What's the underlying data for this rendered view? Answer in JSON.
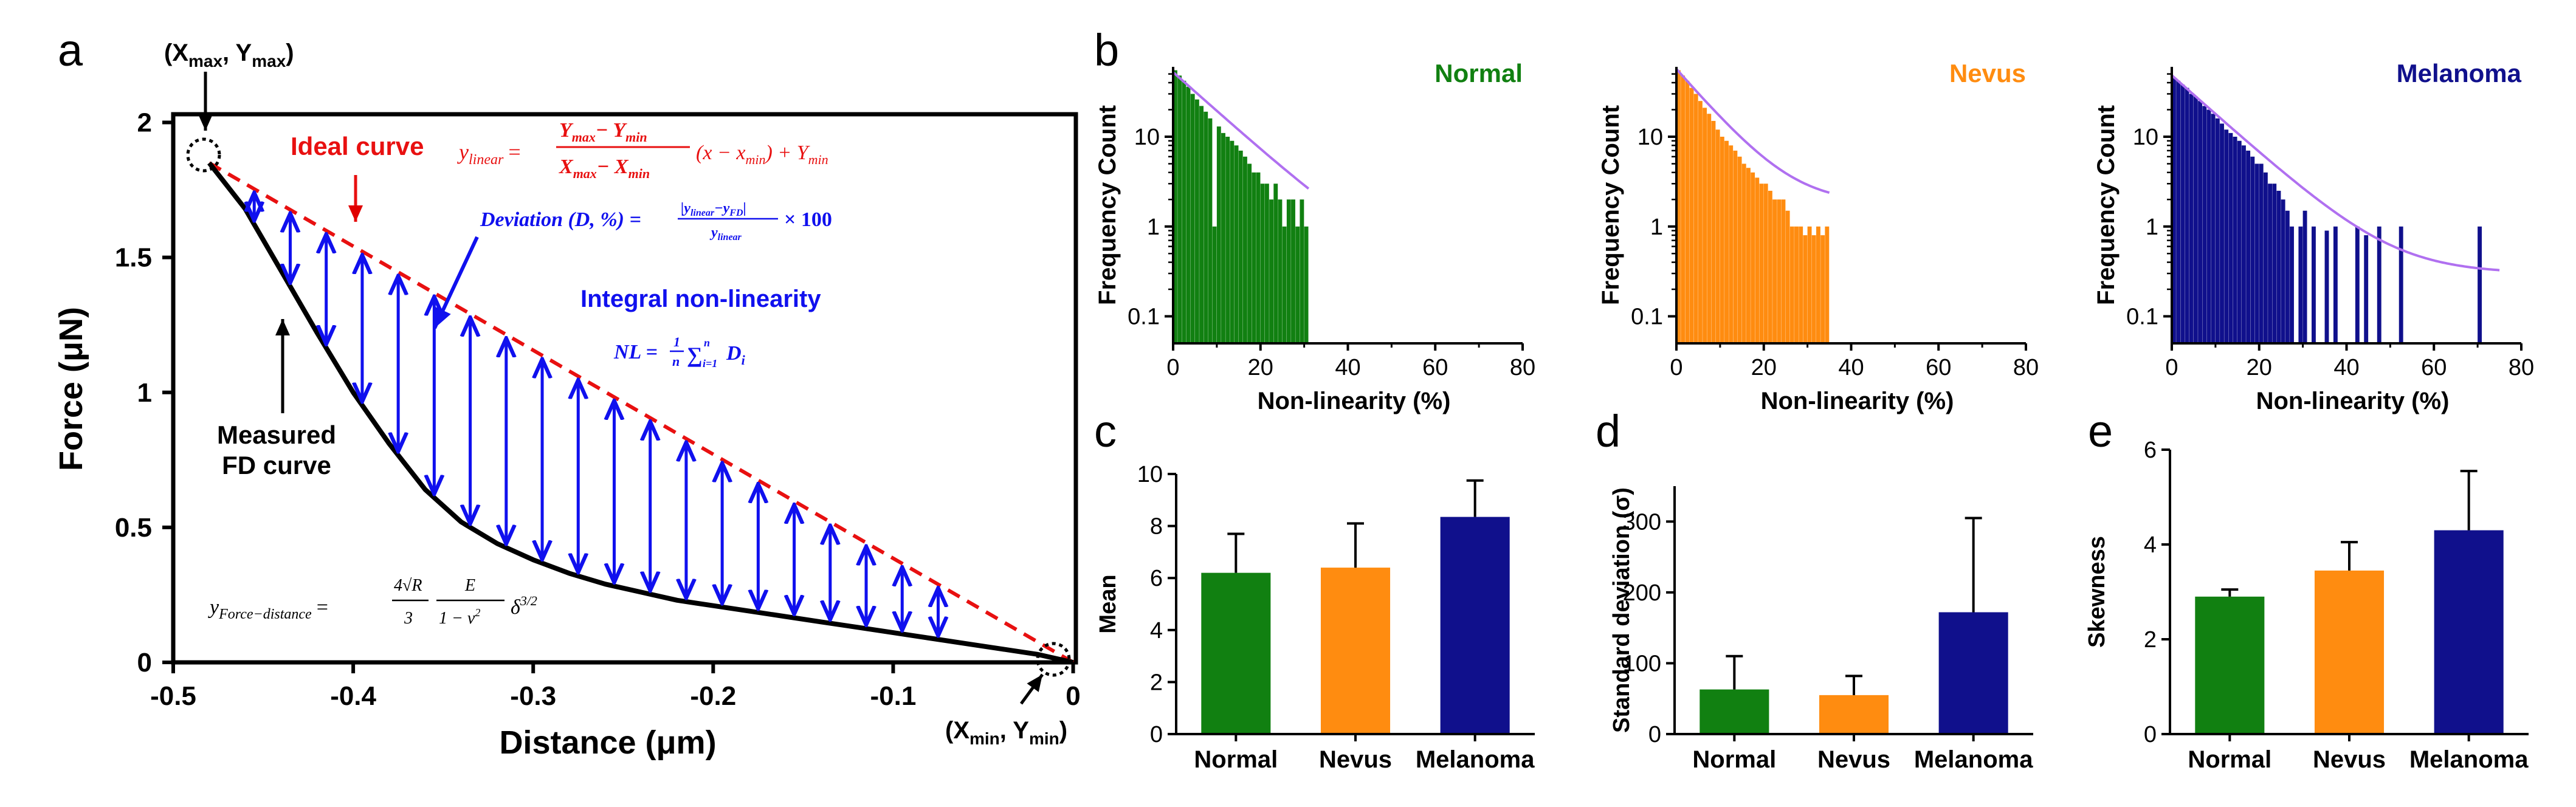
{
  "chart_data": [
    {
      "panel": "a",
      "type": "line",
      "xlabel": "Distance (μm)",
      "ylabel": "Force (μN)",
      "xlim": [
        -0.5,
        0
      ],
      "ylim": [
        0,
        2
      ],
      "xticks": [
        "-0.5",
        "-0.4",
        "-0.3",
        "-0.2",
        "-0.1",
        "0"
      ],
      "yticks": [
        "0",
        "0.5",
        "1",
        "1.5",
        "2"
      ],
      "series": [
        {
          "name": "Measured FD curve",
          "x": [
            -0.48,
            -0.46,
            -0.44,
            -0.42,
            -0.4,
            -0.38,
            -0.36,
            -0.34,
            -0.32,
            -0.3,
            -0.28,
            -0.26,
            -0.24,
            -0.22,
            -0.2,
            -0.18,
            -0.16,
            -0.14,
            -0.12,
            -0.1,
            -0.08,
            -0.06,
            -0.04,
            -0.02,
            0.0
          ],
          "y": [
            1.85,
            1.68,
            1.45,
            1.22,
            1.0,
            0.81,
            0.64,
            0.52,
            0.44,
            0.38,
            0.33,
            0.29,
            0.26,
            0.23,
            0.21,
            0.19,
            0.17,
            0.15,
            0.13,
            0.11,
            0.09,
            0.07,
            0.05,
            0.03,
            0.0
          ]
        },
        {
          "name": "Ideal curve",
          "x": [
            -0.48,
            0.0
          ],
          "y": [
            1.85,
            0.0
          ]
        }
      ],
      "arrow_x": [
        -0.455,
        -0.435,
        -0.415,
        -0.395,
        -0.375,
        -0.355,
        -0.335,
        -0.315,
        -0.295,
        -0.275,
        -0.255,
        -0.235,
        -0.215,
        -0.195,
        -0.175,
        -0.155,
        -0.135,
        -0.115,
        -0.095,
        -0.075
      ],
      "labels": {
        "top_corner": [
          "(X",
          "max",
          ", Y",
          "max",
          ")"
        ],
        "bottom_corner": [
          "(X",
          "min",
          ", Y",
          "min",
          ")"
        ],
        "ideal_curve": "Ideal curve",
        "measured": [
          "Measured",
          "FD curve"
        ],
        "integral": "Integral non-linearity"
      },
      "equations": {
        "ylinear": [
          "y",
          "linear",
          "=",
          "Y",
          "max",
          "− Y",
          "min",
          "X",
          "max",
          "− X",
          "min",
          "(x − x",
          "min",
          ") + Y",
          "min"
        ],
        "deviation": [
          "Deviation (D, %) =",
          "|y",
          "linear",
          "−y",
          "FD",
          "|",
          "y",
          "linear",
          "× 100"
        ],
        "nl": [
          "NL =",
          "1",
          "n",
          "∑",
          "n",
          "i=1",
          "D",
          "i"
        ],
        "hertz": [
          "y",
          "Force−distance",
          "=",
          "4√R",
          "3",
          "E",
          "1 − ν",
          "2",
          "δ",
          "3/2"
        ]
      }
    },
    {
      "panel": "b",
      "type": "bar",
      "title": "Normal",
      "color": "#118011",
      "xlabel": "Non-linearity  (%)",
      "ylabel": "Frequency Count",
      "xlim": [
        0,
        80
      ],
      "ylim": [
        0.05,
        60
      ],
      "yscale": "log",
      "xticks": [
        "0",
        "20",
        "40",
        "60",
        "80"
      ],
      "yticks": [
        "0.1",
        "1",
        "10"
      ],
      "bin_width": 1,
      "values": [
        55,
        48,
        42,
        36,
        30,
        26,
        22,
        19,
        16,
        1,
        13,
        11,
        10,
        9,
        8,
        7,
        6,
        5,
        4,
        4,
        3,
        3,
        2,
        3,
        2,
        1,
        2,
        2,
        1,
        2,
        1
      ],
      "fit": {
        "a": 52,
        "k": 0.1,
        "c": 0.3,
        "x": [
          0,
          31
        ]
      }
    },
    {
      "panel": "b",
      "type": "bar",
      "title": "Nevus",
      "color": "#FF8C10",
      "xlabel": "Non-linearity  (%)",
      "ylabel": "Frequency Count",
      "xlim": [
        0,
        80
      ],
      "ylim": [
        0.05,
        60
      ],
      "yscale": "log",
      "xticks": [
        "0",
        "20",
        "40",
        "60",
        "80"
      ],
      "yticks": [
        "0.1",
        "1",
        "10"
      ],
      "bin_width": 1,
      "values": [
        55,
        48,
        42,
        35,
        30,
        25,
        21,
        18,
        15,
        12,
        10,
        9,
        8,
        7,
        6,
        5,
        4.5,
        4,
        3.5,
        3,
        3,
        2.5,
        2,
        2,
        2,
        1.5,
        1,
        1,
        1,
        0.8,
        1,
        0.8,
        1,
        0.8,
        1
      ],
      "fit": {
        "a": 55,
        "k": 0.13,
        "c": 1.8,
        "x": [
          0,
          35
        ]
      }
    },
    {
      "panel": "b",
      "type": "bar",
      "title": "Melanoma",
      "color": "#10108C",
      "xlabel": "Non-linearity  (%)",
      "ylabel": "Frequency Count",
      "xlim": [
        0,
        80
      ],
      "ylim": [
        0.05,
        60
      ],
      "yscale": "log",
      "xticks": [
        "0",
        "20",
        "40",
        "60",
        "80"
      ],
      "yticks": [
        "0.1",
        "1",
        "10"
      ],
      "bin_width": 1,
      "values": [
        45,
        42,
        38,
        35,
        30,
        28,
        25,
        22,
        20,
        18,
        16,
        14,
        12,
        11,
        10,
        9,
        8,
        7,
        6,
        5,
        5,
        4,
        3,
        3,
        2.5,
        2,
        1.5,
        1,
        0,
        1,
        1.5,
        0,
        1,
        0,
        0,
        0.9,
        0,
        1,
        0,
        0,
        0,
        0,
        1,
        0,
        0.8,
        0,
        0,
        1,
        0,
        0,
        0,
        0,
        1,
        0,
        0,
        0,
        0,
        0,
        0,
        0,
        0,
        0,
        0,
        0,
        0,
        0,
        0,
        0,
        0,
        0,
        1
      ],
      "fit": {
        "a": 48,
        "k": 0.1,
        "c": 0.3,
        "x": [
          0,
          75
        ]
      }
    },
    {
      "panel": "c",
      "type": "bar",
      "ylabel": "Mean",
      "categories": [
        "Normal",
        "Nevus",
        "Melanoma"
      ],
      "values": [
        6.2,
        6.4,
        8.35
      ],
      "errors": [
        1.5,
        1.7,
        1.4
      ],
      "colors": [
        "#118011",
        "#FF8C10",
        "#10108C"
      ],
      "ylim": [
        0,
        10
      ],
      "yticks": [
        "0",
        "2",
        "4",
        "6",
        "8",
        "10"
      ]
    },
    {
      "panel": "d",
      "type": "bar",
      "ylabel": "Standard deviation (σ)",
      "categories": [
        "Normal",
        "Nevus",
        "Melanoma"
      ],
      "values": [
        63,
        55,
        172
      ],
      "errors": [
        47,
        27,
        133
      ],
      "colors": [
        "#118011",
        "#FF8C10",
        "#10108C"
      ],
      "ylim": [
        0,
        350
      ],
      "yticks": [
        "0",
        "100",
        "200",
        "300"
      ]
    },
    {
      "panel": "e",
      "type": "bar",
      "ylabel": "Skewness",
      "categories": [
        "Normal",
        "Nevus",
        "Melanoma"
      ],
      "values": [
        2.9,
        3.45,
        4.3
      ],
      "errors": [
        0.15,
        0.6,
        1.25
      ],
      "colors": [
        "#118011",
        "#FF8C10",
        "#10108C"
      ],
      "ylim": [
        0,
        6
      ],
      "yticks": [
        "0",
        "2",
        "4",
        "6"
      ]
    }
  ],
  "panel_labels": [
    "a",
    "b",
    "c",
    "d",
    "e"
  ]
}
